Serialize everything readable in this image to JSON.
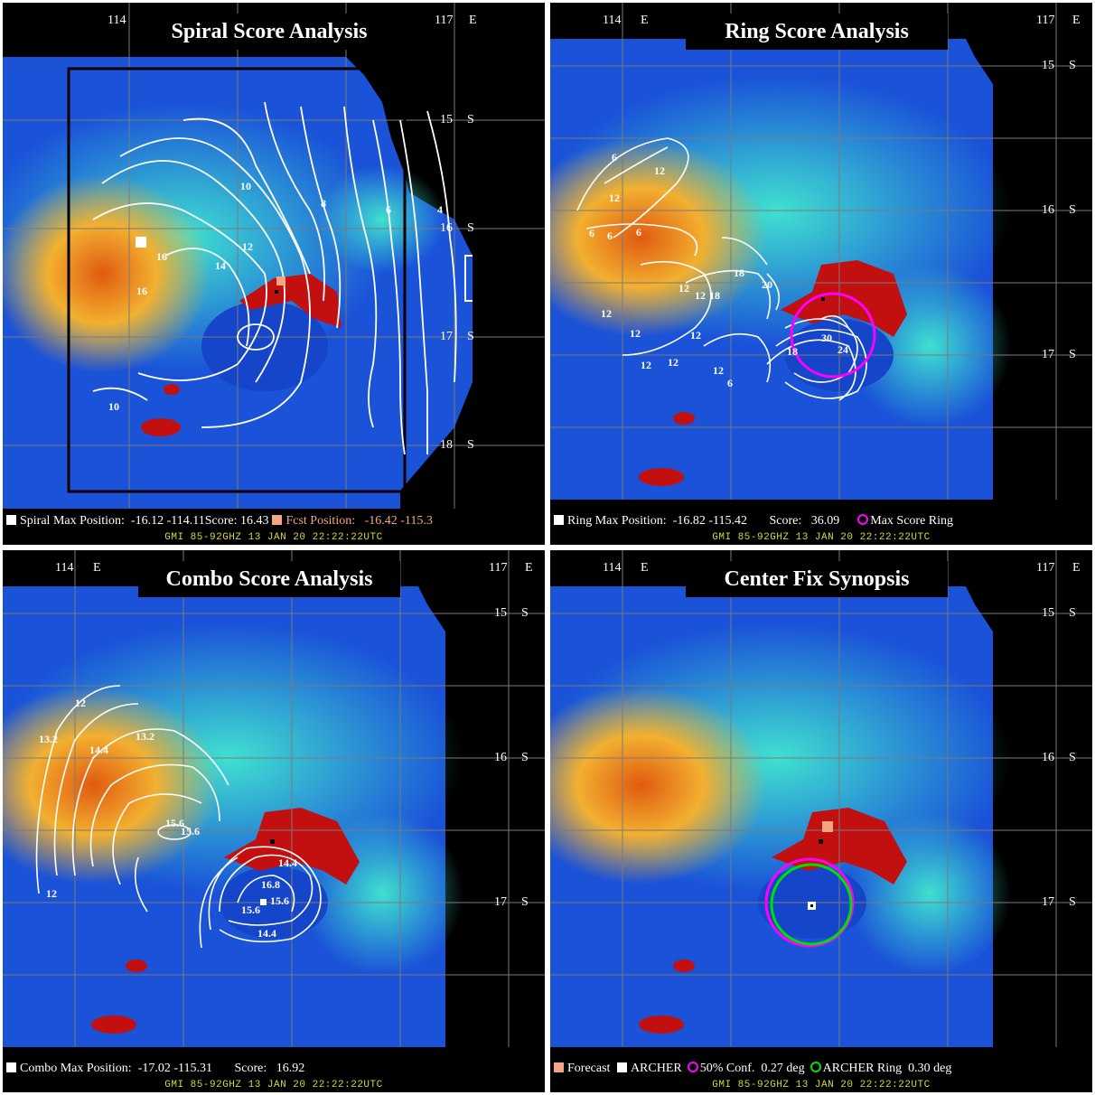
{
  "panels": [
    {
      "title": "Spiral Score Analysis",
      "lon_labels": [
        "114",
        "117",
        "E"
      ],
      "lat_labels": [
        [
          "15",
          "S"
        ],
        [
          "16",
          "S"
        ],
        [
          "17",
          "S"
        ],
        [
          "18",
          "S"
        ]
      ],
      "contour_labels": [
        "16",
        "16",
        "14",
        "12",
        "10",
        "8",
        "6",
        "4",
        "10"
      ],
      "caption": {
        "max_label": "Spiral Max Position:",
        "max_value": "-16.12  -114.11",
        "score_label": "Score:",
        "score_value": "16.43",
        "fcst_label": "Fcst Position:",
        "fcst_value": "-16.42  -115.3"
      },
      "sensor_line": "GMI   85-92GHZ   13 JAN 20   22:22:22UTC"
    },
    {
      "title": "Ring Score Analysis",
      "lon_labels": [
        "114",
        "E",
        "117",
        "E"
      ],
      "lat_labels": [
        [
          "15",
          "S"
        ],
        [
          "16",
          "S"
        ],
        [
          "17",
          "S"
        ]
      ],
      "contour_labels": [
        "6",
        "12",
        "12",
        "6",
        "6",
        "6",
        "12",
        "12",
        "18",
        "12",
        "12",
        "12",
        "12",
        "12",
        "18",
        "6",
        "20",
        "18",
        "12",
        "30",
        "24"
      ],
      "caption": {
        "max_label": "Ring Max Position:",
        "max_value": "-16.82  -115.42",
        "score_label": "Score:",
        "score_value": "36.09",
        "ring_label": "Max Score Ring"
      },
      "sensor_line": "GMI   85-92GHZ   13 JAN 20   22:22:22UTC"
    },
    {
      "title": "Combo Score Analysis",
      "lon_labels": [
        "114",
        "E",
        "117",
        "E"
      ],
      "lat_labels": [
        [
          "15",
          "S"
        ],
        [
          "16",
          "S"
        ],
        [
          "17",
          "S"
        ]
      ],
      "contour_labels": [
        "12",
        "13.2",
        "14.4",
        "13.2",
        "15.6",
        "15.6",
        "12",
        "16.8",
        "15.6",
        "15.6",
        "14.4",
        "14.4"
      ],
      "caption": {
        "max_label": "Combo Max Position:",
        "max_value": "-17.02  -115.31",
        "score_label": "Score:",
        "score_value": "16.92"
      },
      "sensor_line": "GMI   85-92GHZ   13 JAN 20   22:22:22UTC"
    },
    {
      "title": "Center Fix Synopsis",
      "lon_labels": [
        "114",
        "E",
        "117",
        "E"
      ],
      "lat_labels": [
        [
          "15",
          "S"
        ],
        [
          "16",
          "S"
        ],
        [
          "17",
          "S"
        ]
      ],
      "caption": {
        "forecast_label": "Forecast",
        "archer_label": "ARCHER",
        "conf_label": "50% Conf.",
        "conf_value": "0.27 deg",
        "ring_label": "ARCHER Ring",
        "ring_value": "0.30 deg"
      },
      "sensor_line": "GMI   85-92GHZ   13 JAN 20   22:22:22UTC"
    }
  ],
  "colors": {
    "background": "#000000",
    "fcst": "#f4a582",
    "max_ring": "#ff00ff",
    "archer_ring": "#00ff00",
    "sensor_text": "#d8d830"
  }
}
